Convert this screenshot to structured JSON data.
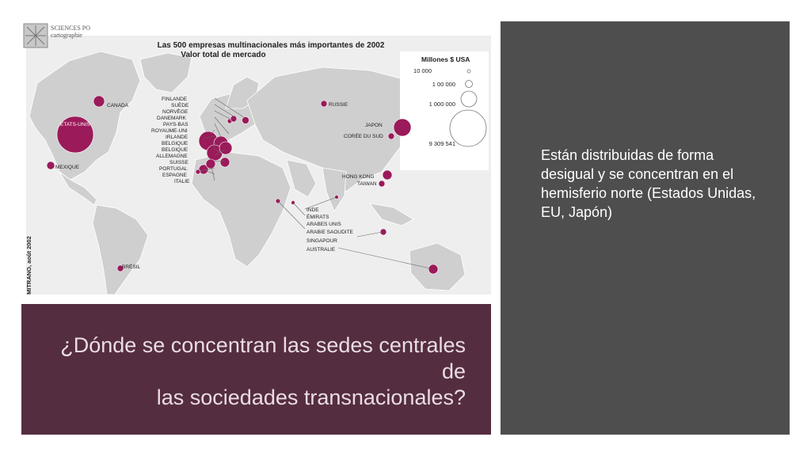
{
  "map": {
    "publisher_line1": "SCIENCES PO",
    "publisher_line2": "cartographie",
    "title_line1": "Las 500 empresas multinacionales más importantes de 2002",
    "title_line2": "Valor total de mercado",
    "credit": "MITRANO, août 2002",
    "legend": {
      "title": "Millones $ USA",
      "entries": [
        {
          "label": "10 000",
          "value": 10000
        },
        {
          "label": "1 00 000",
          "value": 100000
        },
        {
          "label": "1 000 000",
          "value": 1000000
        },
        {
          "label": "9 309 541",
          "value": 9309541
        }
      ]
    },
    "labels": {
      "canada": "CANADA",
      "etats_unis": "ETATS-UNIS",
      "mexique": "MEXIQUE",
      "bresil": "BRÉSIL",
      "russie": "RUSSIE",
      "japon": "JAPON",
      "coree": "CORÉE DU SUD",
      "hong_kong": "HONG KONG",
      "taiwan": "TAIWAN",
      "europe": [
        "FINLANDE",
        "SUÈDE",
        "NORVÈGE",
        "DANEMARK",
        "PAYS-BAS",
        "ROYAUME-UNI",
        "IRLANDE",
        "BELGIQUE",
        "BELGIQUE",
        "ALLEMAGNE",
        "SUISSE",
        "PORTUGAL",
        "ESPAGNE",
        "ITALIE"
      ],
      "south": [
        "INDE",
        "ÉMIRATS",
        "ARABES UNIS",
        "ARABIE SAOUDITE",
        "SINGAPOUR",
        "AUSTRALIE"
      ]
    },
    "colors": {
      "marker": "#9b1a5a",
      "land": "#d0d0d0",
      "sea": "#f2f2f2"
    }
  },
  "title": {
    "line1": "¿Dónde se concentran las sedes centrales de",
    "line2": "las sociedades transnacionales?"
  },
  "side": {
    "text": "Están distribuidas de forma desigual y se concentran en el hemisferio norte (Estados Unidas, EU, Japón)"
  }
}
